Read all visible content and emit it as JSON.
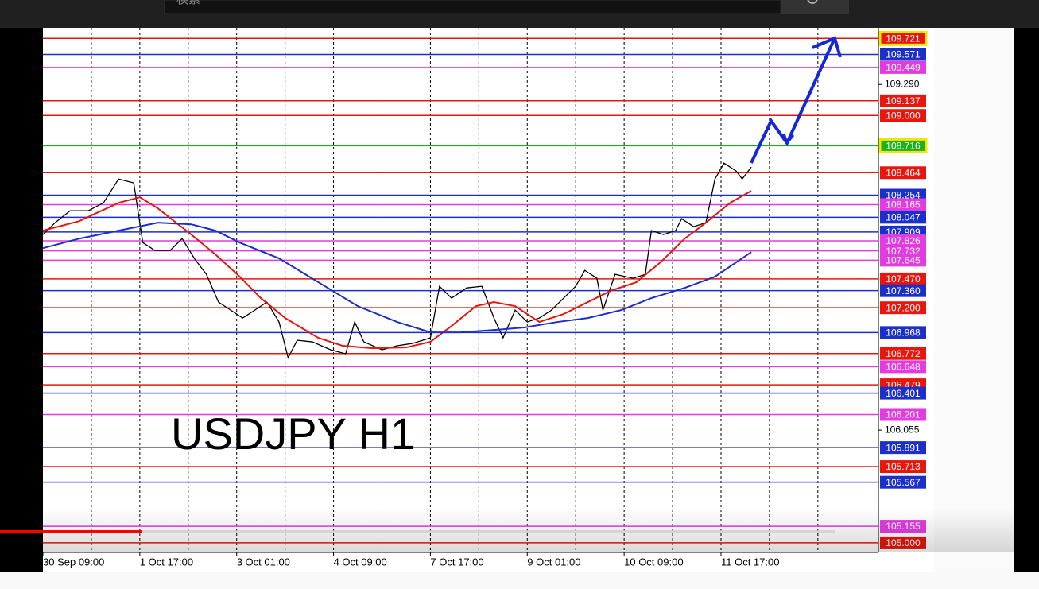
{
  "search": {
    "placeholder": "検索"
  },
  "chart_data": {
    "type": "line",
    "annotation": "USDJPY H1",
    "xlim": [
      0,
      276
    ],
    "xticks": [
      {
        "value": 0,
        "label": "30 Sep 09:00"
      },
      {
        "value": 32,
        "label": "1 Oct 17:00"
      },
      {
        "value": 64,
        "label": "3 Oct 01:00"
      },
      {
        "value": 96,
        "label": "4 Oct 09:00"
      },
      {
        "value": 128,
        "label": "7 Oct 17:00"
      },
      {
        "value": 160,
        "label": "9 Oct 01:00"
      },
      {
        "value": 192,
        "label": "10 Oct 09:00"
      },
      {
        "value": 224,
        "label": "11 Oct 17:00"
      }
    ],
    "x_gridlines": [
      16,
      32,
      48,
      64,
      80,
      96,
      112,
      128,
      144,
      160,
      176,
      192,
      208,
      224,
      240,
      256
    ],
    "ylim": [
      104.91,
      109.82
    ],
    "yticks": [
      {
        "value": 109.29,
        "label": "109.290"
      },
      {
        "value": 106.055,
        "label": "106.055"
      }
    ],
    "levels": [
      {
        "value": 109.721,
        "label": "109.721",
        "color": "#e8160c",
        "highlight": true
      },
      {
        "value": 109.571,
        "label": "109.571",
        "color": "#1c2fc8"
      },
      {
        "value": 109.449,
        "label": "109.449",
        "color": "#e23ce0"
      },
      {
        "value": 109.137,
        "label": "109.137",
        "color": "#e8160c"
      },
      {
        "value": 109,
        "label": "109.000",
        "color": "#e8160c"
      },
      {
        "value": 108.716,
        "label": "108.716",
        "color": "#19b219",
        "highlight": true
      },
      {
        "value": 108.464,
        "label": "108.464",
        "color": "#e8160c"
      },
      {
        "value": 108.254,
        "label": "108.254",
        "color": "#1c2fc8"
      },
      {
        "value": 108.165,
        "label": "108.165",
        "color": "#e23ce0"
      },
      {
        "value": 108.047,
        "label": "108.047",
        "color": "#1c2fc8"
      },
      {
        "value": 107.909,
        "label": "107.909",
        "color": "#1c2fc8"
      },
      {
        "value": 107.826,
        "label": "107.826",
        "color": "#e23ce0"
      },
      {
        "value": 107.732,
        "label": "107.732",
        "color": "#e23ce0"
      },
      {
        "value": 107.645,
        "label": "107.645",
        "color": "#e23ce0"
      },
      {
        "value": 107.47,
        "label": "107.470",
        "color": "#e8160c"
      },
      {
        "value": 107.36,
        "label": "107.360",
        "color": "#1c2fc8"
      },
      {
        "value": 107.2,
        "label": "107.200",
        "color": "#e8160c"
      },
      {
        "value": 106.968,
        "label": "106.968",
        "color": "#1c2fc8"
      },
      {
        "value": 106.772,
        "label": "106.772",
        "color": "#e8160c"
      },
      {
        "value": 106.648,
        "label": "106.648",
        "color": "#e23ce0"
      },
      {
        "value": 106.479,
        "label": "106.479",
        "color": "#e8160c"
      },
      {
        "value": 106.401,
        "label": "106.401",
        "color": "#1c2fc8"
      },
      {
        "value": 106.201,
        "label": "106.201",
        "color": "#e23ce0"
      },
      {
        "value": 105.891,
        "label": "105.891",
        "color": "#1c2fc8"
      },
      {
        "value": 105.713,
        "label": "105.713",
        "color": "#e8160c"
      },
      {
        "value": 105.567,
        "label": "105.567",
        "color": "#1c2fc8"
      },
      {
        "value": 105.155,
        "label": "105.155",
        "color": "#e23ce0"
      },
      {
        "value": 105,
        "label": "105.000",
        "color": "#e8160c"
      }
    ],
    "series": [
      {
        "color": "#000000",
        "x": [
          0,
          4,
          9,
          15,
          20,
          25,
          30,
          33,
          37,
          42,
          46,
          50,
          54,
          58,
          62,
          66,
          70,
          74,
          78,
          81,
          84,
          89,
          95,
          100,
          103,
          106,
          112,
          117,
          122,
          128,
          131,
          135,
          140,
          145,
          149,
          152,
          156,
          160,
          164,
          168,
          172,
          176,
          179,
          183,
          185,
          189,
          195,
          199,
          201,
          205,
          209,
          211,
          215,
          219,
          222,
          225,
          229,
          231,
          234
        ],
        "values": [
          107.885,
          107.996,
          108.108,
          108.108,
          108.182,
          108.405,
          108.368,
          107.81,
          107.736,
          107.736,
          107.847,
          107.662,
          107.513,
          107.253,
          107.178,
          107.104,
          107.178,
          107.253,
          107.067,
          106.732,
          106.896,
          106.881,
          106.807,
          106.769,
          107.067,
          106.881,
          106.807,
          106.844,
          106.866,
          106.918,
          107.401,
          107.29,
          107.386,
          107.401,
          107.104,
          106.918,
          107.178,
          107.067,
          107.104,
          107.178,
          107.29,
          107.401,
          107.55,
          107.476,
          107.178,
          107.513,
          107.476,
          107.513,
          107.922,
          107.885,
          107.922,
          108.033,
          107.959,
          107.996,
          108.405,
          108.554,
          108.479,
          108.405,
          108.517
        ]
      },
      {
        "color": "#e8160c",
        "x": [
          0,
          12,
          25,
          32,
          38,
          49,
          57,
          65,
          72,
          80,
          91,
          99,
          109,
          120,
          128,
          135,
          143,
          149,
          156,
          164,
          172,
          180,
          188,
          196,
          204,
          212,
          219,
          227,
          234
        ],
        "values": [
          107.922,
          108.011,
          108.182,
          108.234,
          108.13,
          107.885,
          107.699,
          107.491,
          107.29,
          107.104,
          106.918,
          106.844,
          106.821,
          106.829,
          106.881,
          107.03,
          107.215,
          107.253,
          107.215,
          107.067,
          107.141,
          107.253,
          107.364,
          107.439,
          107.625,
          107.847,
          107.996,
          108.182,
          108.294
        ]
      },
      {
        "color": "#1c2fc8",
        "x": [
          0,
          12,
          25,
          38,
          49,
          57,
          65,
          78,
          91,
          104,
          117,
          128,
          138,
          149,
          159,
          170,
          180,
          191,
          201,
          212,
          222,
          229,
          234
        ],
        "values": [
          107.758,
          107.847,
          107.922,
          107.996,
          107.981,
          107.922,
          107.81,
          107.662,
          107.439,
          107.215,
          107.067,
          106.97,
          106.97,
          106.992,
          107.015,
          107.067,
          107.104,
          107.178,
          107.29,
          107.386,
          107.491,
          107.625,
          107.721
        ]
      }
    ]
  }
}
